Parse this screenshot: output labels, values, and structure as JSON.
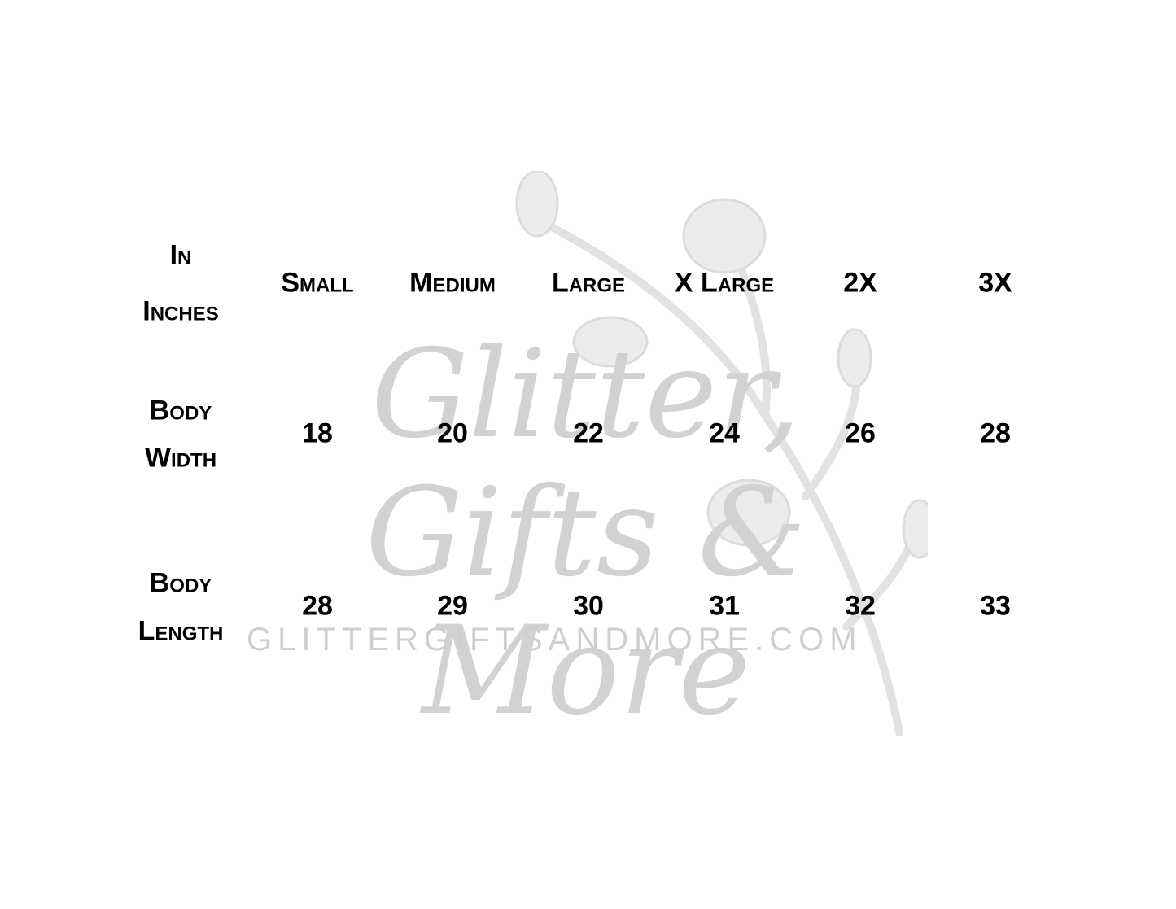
{
  "table": {
    "corner": [
      "In",
      "Inches"
    ],
    "columns": [
      "Small",
      "Medium",
      "Large",
      "X Large",
      "2X",
      "3X"
    ],
    "rows": [
      {
        "label": [
          "Body",
          "Width"
        ],
        "values": [
          "18",
          "20",
          "22",
          "24",
          "26",
          "28"
        ]
      },
      {
        "label": [
          "Body",
          "Length"
        ],
        "values": [
          "28",
          "29",
          "30",
          "31",
          "32",
          "33"
        ]
      }
    ]
  },
  "watermark": {
    "script": "Glitter, Gifts & More",
    "url": "GLITTERGIFTSANDMORE.COM"
  },
  "colors": {
    "rule": "#5fa0cf",
    "watermark": "#c9c9c9"
  }
}
